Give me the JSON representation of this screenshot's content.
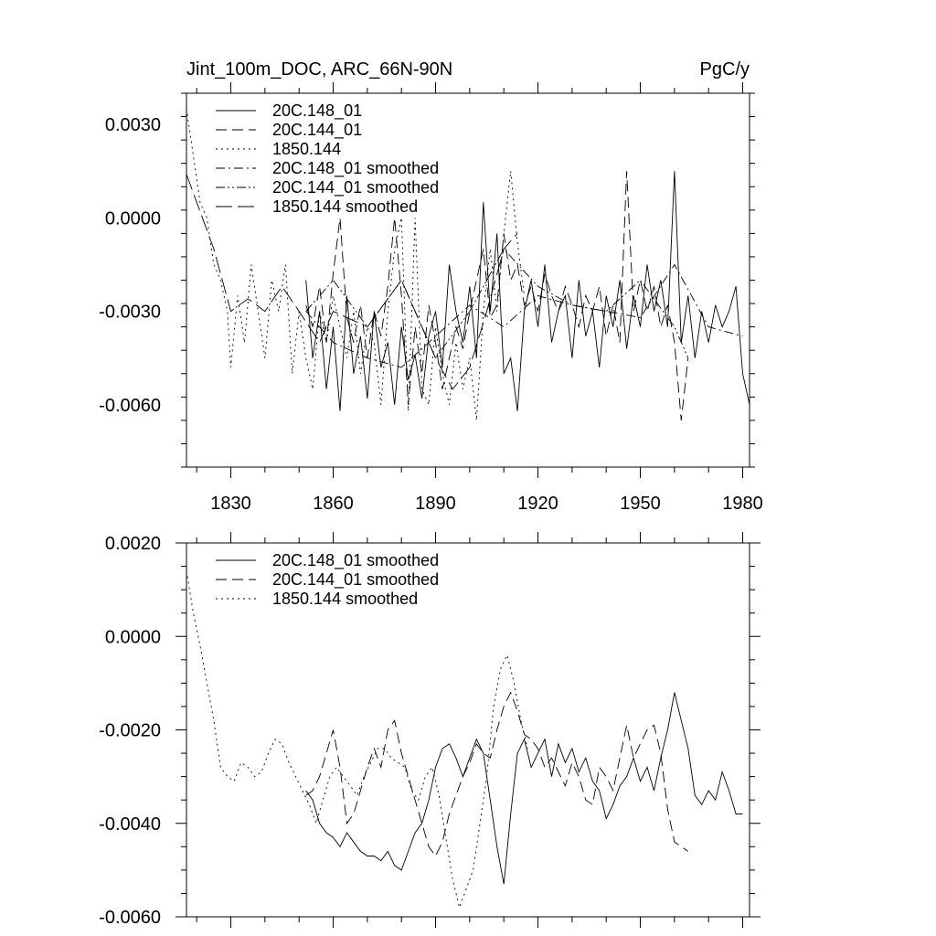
{
  "chart_data": [
    {
      "type": "line",
      "title": "Jint_100m_DOC, ARC_66N-90N",
      "units": "PgC/y",
      "xlabel": "",
      "ylabel": "",
      "xlim": [
        1817,
        1982
      ],
      "ylim": [
        -0.008,
        0.004
      ],
      "x_ticks": [
        1830,
        1860,
        1890,
        1920,
        1950,
        1980
      ],
      "x_tick_labels": [
        "1830",
        "1860",
        "1890",
        "1920",
        "1950",
        "1980"
      ],
      "y_ticks": [
        0.003,
        0.0,
        -0.003,
        -0.006
      ],
      "y_tick_labels": [
        "0.0030",
        "0.0000",
        "-0.0030",
        "-0.0060"
      ],
      "legend_position": "top-left",
      "series": [
        {
          "name": "20C.148_01",
          "style": "solid",
          "x": [
            1852,
            1854,
            1856,
            1858,
            1860,
            1862,
            1864,
            1866,
            1868,
            1870,
            1872,
            1874,
            1876,
            1878,
            1880,
            1882,
            1884,
            1886,
            1888,
            1890,
            1892,
            1894,
            1896,
            1898,
            1900,
            1902,
            1904,
            1906,
            1908,
            1910,
            1912,
            1914,
            1916,
            1918,
            1920,
            1922,
            1924,
            1926,
            1928,
            1930,
            1932,
            1934,
            1936,
            1938,
            1940,
            1942,
            1944,
            1946,
            1948,
            1950,
            1952,
            1954,
            1956,
            1958,
            1960,
            1962,
            1964,
            1966,
            1968,
            1970,
            1972,
            1974,
            1976,
            1978,
            1980,
            1982
          ],
          "values": [
            -0.002,
            -0.0045,
            -0.003,
            -0.0055,
            -0.0035,
            -0.0062,
            -0.0025,
            -0.005,
            -0.0038,
            -0.0058,
            -0.003,
            -0.0048,
            -0.004,
            -0.006,
            -0.0035,
            -0.0052,
            -0.0044,
            -0.0058,
            -0.0038,
            -0.003,
            -0.0048,
            -0.0015,
            -0.003,
            -0.004,
            -0.0022,
            -0.0045,
            0.0005,
            -0.003,
            -0.0005,
            -0.005,
            -0.0045,
            -0.0062,
            -0.003,
            -0.002,
            -0.0035,
            -0.0015,
            -0.004,
            -0.003,
            -0.0025,
            -0.0045,
            -0.002,
            -0.0038,
            -0.003,
            -0.0048,
            -0.0025,
            -0.0035,
            -0.002,
            -0.0042,
            -0.0025,
            -0.0035,
            -0.0015,
            -0.003,
            -0.002,
            -0.0035,
            0.0015,
            -0.004,
            -0.0025,
            -0.0045,
            -0.003,
            -0.004,
            -0.0028,
            -0.0035,
            -0.003,
            -0.0022,
            -0.005,
            -0.006
          ]
        },
        {
          "name": "20C.144_01",
          "style": "dashed",
          "x": [
            1852,
            1854,
            1856,
            1858,
            1860,
            1862,
            1864,
            1866,
            1868,
            1870,
            1872,
            1874,
            1876,
            1878,
            1880,
            1882,
            1884,
            1886,
            1888,
            1890,
            1892,
            1894,
            1896,
            1898,
            1900,
            1902,
            1904,
            1906,
            1908,
            1910,
            1912,
            1914,
            1916,
            1918,
            1920,
            1922,
            1924,
            1926,
            1928,
            1930,
            1932,
            1934,
            1936,
            1938,
            1940,
            1942,
            1944,
            1946,
            1948,
            1950,
            1952,
            1954,
            1956,
            1958,
            1960,
            1962,
            1964
          ],
          "values": [
            -0.0028,
            -0.0035,
            -0.0022,
            -0.004,
            -0.0018,
            0.0,
            -0.0032,
            -0.004,
            -0.0028,
            -0.0045,
            -0.003,
            -0.0038,
            -0.0022,
            0.0,
            -0.0025,
            -0.006,
            -0.0035,
            -0.005,
            -0.0028,
            -0.004,
            -0.0055,
            -0.0045,
            -0.0035,
            -0.0042,
            -0.003,
            -0.002,
            -0.001,
            -0.0032,
            -0.0028,
            -0.0005,
            -0.002,
            -0.0015,
            -0.0028,
            -0.0022,
            -0.003,
            -0.0018,
            -0.0025,
            -0.003,
            -0.0022,
            -0.0028,
            -0.0035,
            -0.0025,
            -0.003,
            -0.0022,
            -0.0038,
            -0.0028,
            -0.004,
            0.0015,
            -0.003,
            -0.002,
            -0.003,
            -0.0022,
            -0.0035,
            -0.0028,
            -0.004,
            -0.0065,
            -0.0045
          ]
        },
        {
          "name": "1850.144",
          "style": "dotted",
          "x": [
            1817,
            1819,
            1821,
            1823,
            1825,
            1827,
            1829,
            1830,
            1832,
            1834,
            1836,
            1838,
            1840,
            1842,
            1844,
            1846,
            1848,
            1850,
            1852,
            1854,
            1856,
            1858,
            1860,
            1862,
            1864,
            1866,
            1868,
            1870,
            1872,
            1874,
            1876,
            1878,
            1880,
            1882,
            1884,
            1886,
            1888,
            1890,
            1892,
            1894,
            1896,
            1898,
            1900,
            1902,
            1904,
            1906,
            1908,
            1910,
            1912,
            1914,
            1916
          ],
          "values": [
            0.0035,
            0.002,
            0.0005,
            0.0,
            -0.0015,
            -0.002,
            -0.003,
            -0.0048,
            -0.0025,
            -0.004,
            -0.0015,
            -0.003,
            -0.0045,
            -0.002,
            -0.003,
            -0.0015,
            -0.005,
            -0.003,
            -0.0045,
            -0.0055,
            -0.003,
            -0.004,
            -0.0025,
            -0.0035,
            -0.0045,
            -0.003,
            -0.005,
            -0.0035,
            -0.004,
            -0.006,
            -0.003,
            -0.001,
            0.0,
            -0.0062,
            0.0,
            -0.0055,
            -0.006,
            -0.0035,
            -0.005,
            -0.006,
            -0.004,
            -0.0055,
            -0.0045,
            -0.0065,
            -0.003,
            -0.001,
            -0.003,
            -0.0005,
            0.0015,
            -0.0008,
            -0.0025
          ]
        },
        {
          "name": "20C.148_01 smoothed",
          "style": "dash-dot",
          "x": [
            1852,
            1860,
            1870,
            1880,
            1890,
            1900,
            1910,
            1920,
            1930,
            1940,
            1950,
            1960,
            1970,
            1980
          ],
          "values": [
            -0.003,
            -0.004,
            -0.0045,
            -0.0048,
            -0.0038,
            -0.0028,
            -0.0035,
            -0.0025,
            -0.0028,
            -0.003,
            -0.0032,
            -0.0015,
            -0.0035,
            -0.0038
          ]
        },
        {
          "name": "20C.144_01 smoothed",
          "style": "dash-dot-dot",
          "x": [
            1852,
            1860,
            1870,
            1880,
            1890,
            1900,
            1910,
            1920,
            1930,
            1940,
            1950,
            1960,
            1964
          ],
          "values": [
            -0.003,
            -0.002,
            -0.0035,
            -0.002,
            -0.0045,
            -0.003,
            -0.001,
            -0.0022,
            -0.0028,
            -0.003,
            -0.002,
            -0.0035,
            -0.0045
          ]
        },
        {
          "name": "1850.144 smoothed",
          "style": "long-dash",
          "x": [
            1817,
            1825,
            1830,
            1835,
            1840,
            1845,
            1850,
            1856,
            1860,
            1870,
            1880,
            1890,
            1895,
            1900,
            1905,
            1910,
            1914
          ],
          "values": [
            0.0014,
            -0.001,
            -0.003,
            -0.0026,
            -0.003,
            -0.0022,
            -0.003,
            -0.004,
            -0.003,
            -0.0035,
            -0.002,
            -0.0045,
            -0.0055,
            -0.0048,
            -0.003,
            -0.001,
            -0.0005
          ]
        }
      ]
    },
    {
      "type": "line",
      "title": "",
      "xlabel": "",
      "ylabel": "",
      "xlim": [
        1817,
        1982
      ],
      "ylim": [
        -0.006,
        0.002
      ],
      "x_ticks": [
        1830,
        1860,
        1890,
        1920,
        1950,
        1980
      ],
      "y_ticks": [
        0.002,
        0.0,
        -0.002,
        -0.004,
        -0.006
      ],
      "y_tick_labels": [
        "0.0020",
        "0.0000",
        "-0.0020",
        "-0.0040",
        "-0.0060"
      ],
      "legend_position": "top-left",
      "series": [
        {
          "name": "20C.148_01 smoothed",
          "style": "solid",
          "x": [
            1852,
            1854,
            1856,
            1858,
            1860,
            1862,
            1864,
            1866,
            1868,
            1870,
            1872,
            1874,
            1876,
            1878,
            1880,
            1882,
            1884,
            1886,
            1888,
            1890,
            1892,
            1894,
            1896,
            1898,
            1900,
            1902,
            1904,
            1906,
            1908,
            1910,
            1912,
            1914,
            1916,
            1918,
            1920,
            1922,
            1924,
            1926,
            1928,
            1930,
            1932,
            1934,
            1936,
            1938,
            1940,
            1942,
            1944,
            1946,
            1948,
            1950,
            1952,
            1954,
            1956,
            1958,
            1960,
            1962,
            1964,
            1966,
            1968,
            1970,
            1972,
            1974,
            1976,
            1978,
            1980
          ],
          "values": [
            -0.0033,
            -0.0035,
            -0.004,
            -0.0042,
            -0.0043,
            -0.0045,
            -0.0042,
            -0.0044,
            -0.0046,
            -0.0047,
            -0.0047,
            -0.0048,
            -0.0046,
            -0.0049,
            -0.005,
            -0.0046,
            -0.0042,
            -0.004,
            -0.0035,
            -0.0028,
            -0.0024,
            -0.0023,
            -0.0026,
            -0.003,
            -0.0026,
            -0.0022,
            -0.0025,
            -0.0035,
            -0.0045,
            -0.0053,
            -0.0038,
            -0.0025,
            -0.0022,
            -0.0028,
            -0.0025,
            -0.0022,
            -0.003,
            -0.0023,
            -0.0027,
            -0.0024,
            -0.0029,
            -0.0026,
            -0.0031,
            -0.0033,
            -0.0039,
            -0.0036,
            -0.0032,
            -0.003,
            -0.0026,
            -0.0031,
            -0.0028,
            -0.0033,
            -0.0026,
            -0.002,
            -0.0012,
            -0.0018,
            -0.0024,
            -0.0034,
            -0.0036,
            -0.0033,
            -0.0035,
            -0.0029,
            -0.0033,
            -0.0038,
            -0.0038
          ]
        },
        {
          "name": "20C.144_01 smoothed",
          "style": "dashed",
          "x": [
            1852,
            1854,
            1856,
            1858,
            1860,
            1862,
            1864,
            1866,
            1868,
            1870,
            1872,
            1874,
            1876,
            1878,
            1880,
            1882,
            1884,
            1886,
            1888,
            1890,
            1892,
            1894,
            1896,
            1898,
            1900,
            1902,
            1904,
            1906,
            1908,
            1910,
            1912,
            1914,
            1916,
            1918,
            1920,
            1922,
            1924,
            1926,
            1928,
            1930,
            1932,
            1934,
            1936,
            1938,
            1940,
            1942,
            1944,
            1946,
            1948,
            1950,
            1952,
            1954,
            1956,
            1958,
            1960,
            1962,
            1964
          ],
          "values": [
            -0.0034,
            -0.0033,
            -0.003,
            -0.0025,
            -0.002,
            -0.0028,
            -0.004,
            -0.0038,
            -0.0033,
            -0.0028,
            -0.0024,
            -0.0028,
            -0.002,
            -0.0018,
            -0.0025,
            -0.003,
            -0.0035,
            -0.004,
            -0.0045,
            -0.0047,
            -0.0044,
            -0.0038,
            -0.0034,
            -0.003,
            -0.0027,
            -0.0023,
            -0.0025,
            -0.0026,
            -0.002,
            -0.0015,
            -0.0012,
            -0.0016,
            -0.0021,
            -0.0022,
            -0.0024,
            -0.0028,
            -0.0026,
            -0.0029,
            -0.0032,
            -0.0027,
            -0.003,
            -0.0035,
            -0.0036,
            -0.0028,
            -0.003,
            -0.0033,
            -0.0026,
            -0.0019,
            -0.0026,
            -0.0023,
            -0.002,
            -0.0019,
            -0.0025,
            -0.0037,
            -0.0044,
            -0.0045,
            -0.0046
          ]
        },
        {
          "name": "1850.144 smoothed",
          "style": "dotted",
          "x": [
            1817,
            1819,
            1821,
            1823,
            1825,
            1827,
            1829,
            1831,
            1833,
            1835,
            1837,
            1839,
            1841,
            1843,
            1845,
            1847,
            1849,
            1851,
            1853,
            1855,
            1857,
            1859,
            1861,
            1863,
            1865,
            1867,
            1869,
            1871,
            1873,
            1875,
            1877,
            1879,
            1881,
            1883,
            1885,
            1887,
            1889,
            1891,
            1893,
            1895,
            1897,
            1899,
            1901,
            1903,
            1905,
            1907,
            1909,
            1911,
            1913,
            1915,
            1917
          ],
          "values": [
            0.0014,
            0.0005,
            -0.0002,
            -0.001,
            -0.0018,
            -0.0028,
            -0.003,
            -0.0031,
            -0.0027,
            -0.0028,
            -0.003,
            -0.0029,
            -0.0025,
            -0.0022,
            -0.0023,
            -0.0027,
            -0.003,
            -0.0033,
            -0.0036,
            -0.004,
            -0.0035,
            -0.003,
            -0.0028,
            -0.003,
            -0.0032,
            -0.0034,
            -0.003,
            -0.0027,
            -0.0024,
            -0.0024,
            -0.0026,
            -0.0027,
            -0.0028,
            -0.0033,
            -0.0035,
            -0.003,
            -0.0028,
            -0.0034,
            -0.0043,
            -0.0052,
            -0.0058,
            -0.0054,
            -0.005,
            -0.004,
            -0.003,
            -0.0015,
            -0.0007,
            -0.0004,
            -0.001,
            -0.0018,
            -0.0024
          ]
        }
      ]
    }
  ]
}
